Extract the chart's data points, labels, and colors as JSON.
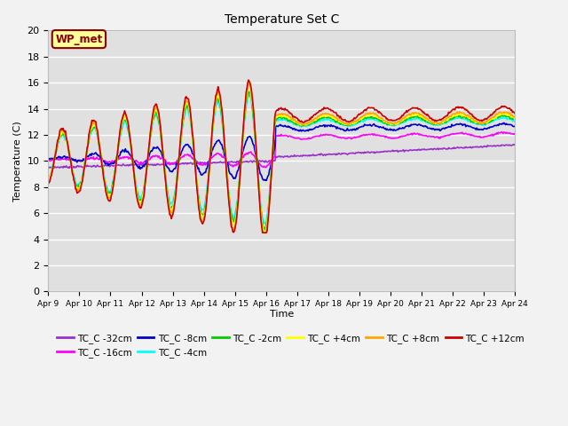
{
  "title": "Temperature Set C",
  "xlabel": "Time",
  "ylabel": "Temperature (C)",
  "ylim": [
    0,
    20
  ],
  "xlim": [
    0,
    15
  ],
  "x_tick_labels": [
    "Apr 9",
    "Apr 10",
    "Apr 11",
    "Apr 12",
    "Apr 13",
    "Apr 14",
    "Apr 15",
    "Apr 16",
    "Apr 17",
    "Apr 18",
    "Apr 19",
    "Apr 20",
    "Apr 21",
    "Apr 22",
    "Apr 23",
    "Apr 24"
  ],
  "annotation_text": "WP_met",
  "annotation_color": "#8B0000",
  "annotation_bg": "#FFFF99",
  "series": [
    {
      "label": "TC_C -32cm",
      "color": "#9932CC"
    },
    {
      "label": "TC_C -16cm",
      "color": "#FF00FF"
    },
    {
      "label": "TC_C -8cm",
      "color": "#0000CD"
    },
    {
      "label": "TC_C -4cm",
      "color": "#00FFFF"
    },
    {
      "label": "TC_C -2cm",
      "color": "#00CC00"
    },
    {
      "label": "TC_C +4cm",
      "color": "#FFFF00"
    },
    {
      "label": "TC_C +8cm",
      "color": "#FFA500"
    },
    {
      "label": "TC_C +12cm",
      "color": "#CC0000"
    }
  ],
  "bg_color": "#E0E0E0",
  "fig_bg_color": "#F2F2F2",
  "grid_color": "#FFFFFF",
  "lw": 1.2
}
